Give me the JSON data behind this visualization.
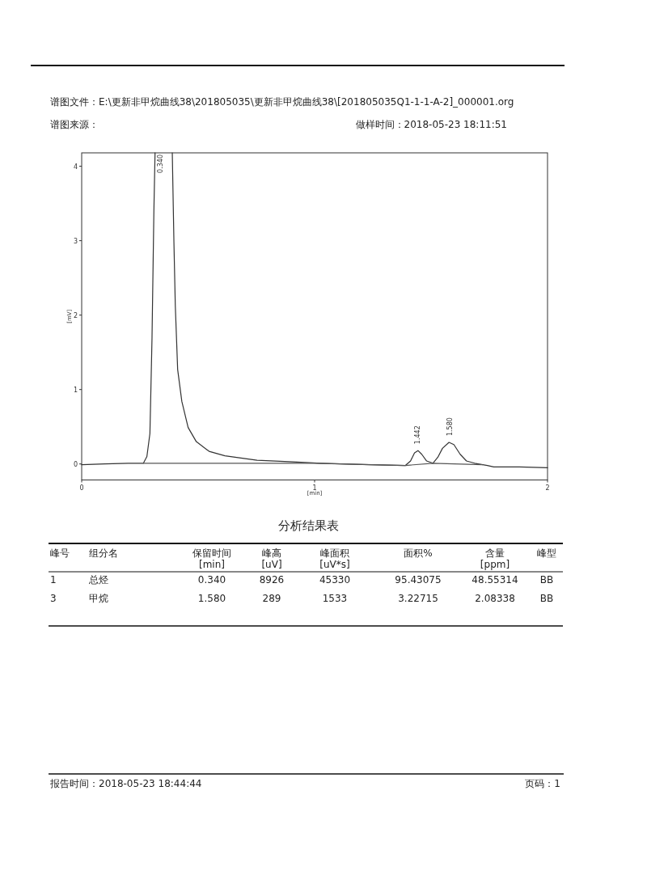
{
  "chart_data": [
    {
      "type": "line",
      "xlabel": "[min]",
      "ylabel": "[mV]",
      "xlim": [
        0,
        2
      ],
      "ylim": [
        -0.215,
        4.18
      ],
      "xticks": [
        0,
        1,
        2
      ],
      "yticks": [
        0,
        1,
        2,
        3,
        4
      ],
      "grid": false,
      "series": [
        {
          "color": "#333333",
          "x": [
            0,
            0.1,
            0.2,
            0.265,
            0.28,
            0.293,
            0.302,
            0.31,
            0.315
          ],
          "values": [
            -0.01,
            0,
            0.01,
            0.01,
            0.1,
            0.41,
            1.7,
            3.4,
            4.18
          ]
        },
        {
          "color": "#333333",
          "x": [
            0.389,
            0.396,
            0.402,
            0.412,
            0.43,
            0.457,
            0.492,
            0.547,
            0.615,
            0.753,
            0.89,
            1.027,
            1.234,
            1.39,
            1.412,
            1.429,
            1.444,
            1.46,
            1.481,
            1.508,
            1.529,
            1.549,
            1.577,
            1.598,
            1.625,
            1.652,
            1.687,
            1.742,
            1.769,
            1.879,
            2.0
          ],
          "values": [
            4.18,
            2.98,
            2.12,
            1.27,
            0.84,
            0.49,
            0.3,
            0.17,
            0.11,
            0.05,
            0.03,
            0.01,
            -0.01,
            -0.02,
            0.04,
            0.15,
            0.18,
            0.13,
            0.04,
            0.01,
            0.09,
            0.21,
            0.29,
            0.26,
            0.13,
            0.04,
            0.01,
            -0.02,
            -0.04,
            -0.04,
            -0.05
          ]
        },
        {
          "color": "#555555",
          "x": [
            0.265,
            0.6,
            1.0,
            1.39,
            1.508,
            1.72
          ],
          "values": [
            0.01,
            0.01,
            0.01,
            -0.02,
            0.01,
            -0.01
          ]
        }
      ],
      "annotations": [
        "谱图文件：E:\\更新非甲烷曲线38\\201805035\\更新非甲烷曲线38\\[201805035Q1-1-1-A-2]_000001.org",
        "谱图来源：",
        "做样时间：2018-05-23 18:11:51",
        "报告时间：2018-05-23 18:44:44",
        "页码：1",
        "0.340",
        {
          "text": "1.442",
          "x": 1.442,
          "y": 0.18
        },
        {
          "text": "1.580",
          "x": 1.58,
          "y": 0.29
        }
      ]
    },
    {
      "type": "other",
      "title": "分析结果表",
      "categories": [
        "峰号",
        "组分名",
        "保留时间\n[min]",
        "峰高\n[uV]",
        "峰面积\n[uV*s]",
        "面积%",
        "含量\n[ppm]",
        "峰型"
      ],
      "annotations": [
        "1",
        "总烃",
        "0.340",
        "8926",
        "45330",
        "95.43075",
        "48.55314",
        "BB",
        "3",
        "甲烷",
        "1.580",
        "289",
        "1533",
        "3.22715",
        "2.08338",
        "BB"
      ]
    }
  ]
}
